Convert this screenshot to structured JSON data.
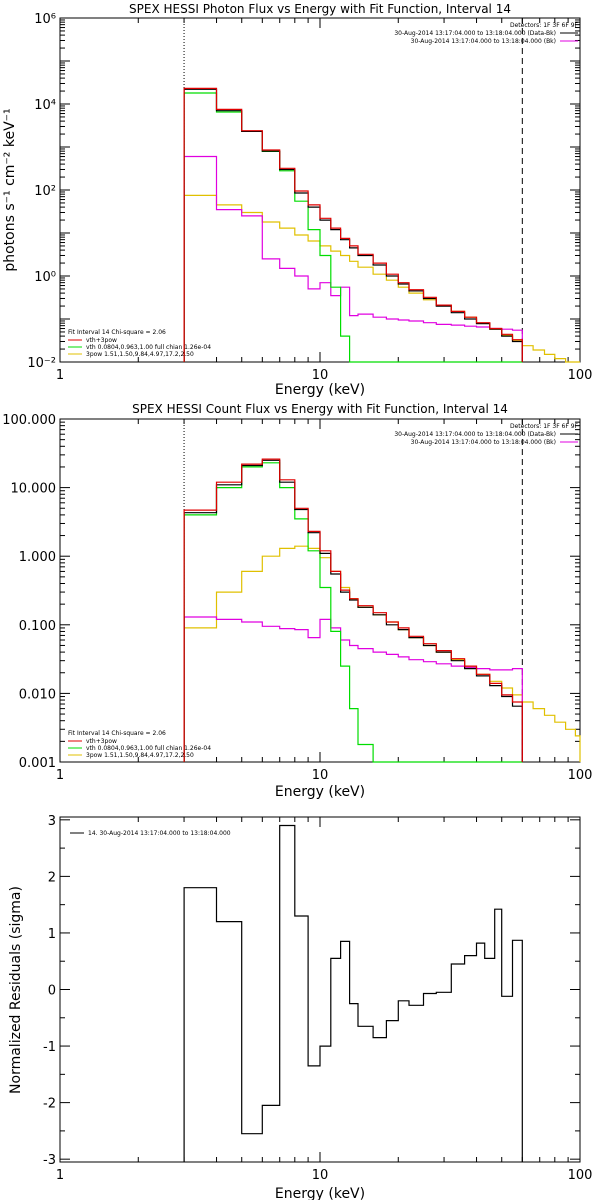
{
  "palette": {
    "total": "#000000",
    "vth_plus_3pow": "#e00000",
    "vth": "#00dd00",
    "3pow": "#e0c000",
    "bk": "#e000e0"
  },
  "chart_data": [
    {
      "type": "line",
      "step": true,
      "title": "SPEX HESSI Photon Flux vs Energy with Fit Function, Interval 14",
      "xlabel": "Energy (keV)",
      "ylabel": "photons s⁻¹ cm⁻² keV⁻¹",
      "xscale": "log",
      "yscale": "log",
      "xlim": [
        1,
        100
      ],
      "ylim": [
        0.01,
        1000000
      ],
      "xticks": [
        1,
        10,
        100
      ],
      "xtick_labels": [
        "1",
        "10",
        "100"
      ],
      "yticks": [
        0.01,
        1,
        100,
        10000,
        1000000
      ],
      "ytick_labels": [
        "10⁻²",
        "10⁰",
        "10²",
        "10⁴",
        "10⁶"
      ],
      "vlines": [
        {
          "x": 3.0,
          "style": "dotted"
        },
        {
          "x": 60.0,
          "style": "dashed"
        }
      ],
      "legend_right": {
        "header": "Detectors: 1F 3F 6F 9F",
        "entries": [
          "30-Aug-2014 13:17:04.000 to 13:18:04.000 (Data-Bk)",
          "30-Aug-2014 13:17:04.000 to 13:18:04.000 (Bk)"
        ]
      },
      "legend_left": [
        "Fit Interval 14   Chi-square = 2.06",
        "vth+3pow",
        "vth 0.0804,0.963,1.00   full chian 1.26e-04",
        "3pow 1.51,1.50,9.84,4.97,17.2,2.50"
      ],
      "edges": [
        3.0,
        4.0,
        5.0,
        6.0,
        7.0,
        8.0,
        9.0,
        10.0,
        11.0,
        12.0,
        13.0,
        14.0,
        16.0,
        18.0,
        20.0,
        22.0,
        25.0,
        28.0,
        32.0,
        36.0,
        40.0,
        45.0,
        50.0,
        55.0,
        60.0,
        66.0,
        73.0,
        80.0,
        88.0,
        96.0,
        100.0
      ],
      "series": [
        {
          "name": "Data-Bk",
          "key": "total",
          "n_bins": 24,
          "values": [
            22000,
            7000,
            2300,
            800,
            300,
            85,
            40,
            20,
            12,
            7,
            4.5,
            3.0,
            1.8,
            1.0,
            0.65,
            0.45,
            0.3,
            0.2,
            0.14,
            0.1,
            0.078,
            0.058,
            0.04,
            0.03
          ]
        },
        {
          "name": "vth+3pow",
          "key": "vth_plus_3pow",
          "n_bins": 24,
          "values": [
            23000,
            7500,
            2400,
            850,
            320,
            95,
            45,
            22,
            13,
            7.5,
            5.0,
            3.2,
            2.0,
            1.1,
            0.7,
            0.48,
            0.32,
            0.21,
            0.15,
            0.11,
            0.082,
            0.06,
            0.044,
            0.033
          ]
        },
        {
          "name": "vth",
          "key": "vth",
          "n_bins": 24,
          "values": [
            18000,
            6500,
            2300,
            790,
            280,
            55,
            12,
            3.0,
            0.55,
            0.04,
            0.004,
            0.001,
            0.0001,
            1e-05,
            1e-06,
            1e-07,
            1e-08,
            1e-09,
            1e-10,
            1e-11,
            1e-12,
            1e-13,
            1e-14,
            1e-15
          ]
        },
        {
          "name": "3pow",
          "key": "3pow",
          "n_bins": 30,
          "values": [
            75,
            45,
            30,
            18,
            13,
            9,
            6.5,
            5.0,
            3.8,
            3.0,
            2.2,
            1.6,
            1.1,
            0.8,
            0.55,
            0.4,
            0.28,
            0.21,
            0.15,
            0.11,
            0.08,
            0.058,
            0.042,
            0.032,
            0.024,
            0.019,
            0.015,
            0.012,
            0.01,
            0.0085
          ]
        },
        {
          "name": "Bk",
          "key": "bk",
          "n_bins": 24,
          "values": [
            600,
            35,
            25,
            2.5,
            1.5,
            1.0,
            0.5,
            0.7,
            0.35,
            0.55,
            0.12,
            0.13,
            0.11,
            0.1,
            0.095,
            0.09,
            0.082,
            0.075,
            0.072,
            0.068,
            0.065,
            0.06,
            0.058,
            0.055
          ]
        }
      ]
    },
    {
      "type": "line",
      "step": true,
      "title": "SPEX HESSI Count Flux vs Energy with Fit Function, Interval 14",
      "xlabel": "Energy (keV)",
      "ylabel": "",
      "xscale": "log",
      "yscale": "log",
      "xlim": [
        1,
        100
      ],
      "ylim": [
        0.001,
        100
      ],
      "xticks": [
        1,
        10,
        100
      ],
      "xtick_labels": [
        "1",
        "10",
        "100"
      ],
      "yticks": [
        0.001,
        0.01,
        0.1,
        1,
        10,
        100
      ],
      "ytick_labels": [
        "0.001",
        "0.010",
        "0.100",
        "1.000",
        "10.000",
        "100.000"
      ],
      "vlines": [
        {
          "x": 3.0,
          "style": "dotted"
        },
        {
          "x": 60.0,
          "style": "dashed"
        }
      ],
      "legend_right": {
        "header": "Detectors: 1F 3F 6F 9F",
        "entries": [
          "30-Aug-2014 13:17:04.000 to 13:18:04.000 (Data-Bk)",
          "30-Aug-2014 13:17:04.000 to 13:18:04.000 (Bk)"
        ]
      },
      "legend_left": [
        "Fit Interval 14   Chi-square = 2.06",
        "vth+3pow",
        "vth 0.0804,0.963,1.00   full chian 1.26e-04",
        "3pow 1.51,1.50,9.84,4.97,17.2,2.50"
      ],
      "edges": [
        3.0,
        4.0,
        5.0,
        6.0,
        7.0,
        8.0,
        9.0,
        10.0,
        11.0,
        12.0,
        13.0,
        14.0,
        16.0,
        18.0,
        20.0,
        22.0,
        25.0,
        28.0,
        32.0,
        36.0,
        40.0,
        45.0,
        50.0,
        55.0,
        60.0,
        66.0,
        73.0,
        80.0,
        88.0,
        96.0,
        100.0
      ],
      "series": [
        {
          "name": "Data-Bk",
          "key": "total",
          "n_bins": 24,
          "values": [
            4.3,
            11,
            21,
            25,
            12,
            4.8,
            2.2,
            1.1,
            0.55,
            0.3,
            0.23,
            0.18,
            0.14,
            0.1,
            0.085,
            0.065,
            0.05,
            0.04,
            0.03,
            0.023,
            0.018,
            0.013,
            0.009,
            0.0065
          ]
        },
        {
          "name": "vth+3pow",
          "key": "vth_plus_3pow",
          "n_bins": 24,
          "values": [
            4.7,
            12,
            22,
            26,
            13,
            5.0,
            2.3,
            1.2,
            0.6,
            0.32,
            0.24,
            0.19,
            0.15,
            0.11,
            0.09,
            0.068,
            0.053,
            0.042,
            0.032,
            0.025,
            0.019,
            0.014,
            0.0095,
            0.0075
          ]
        },
        {
          "name": "vth",
          "key": "vth",
          "n_bins": 24,
          "values": [
            4.0,
            10,
            20,
            23,
            10,
            3.5,
            1.2,
            0.35,
            0.08,
            0.025,
            0.006,
            0.0018,
            0.0005,
            0.0001,
            1e-05,
            1e-06,
            1e-07,
            1e-08,
            1e-09,
            1e-10,
            1e-11,
            1e-12,
            1e-13,
            1e-14
          ]
        },
        {
          "name": "3pow",
          "key": "3pow",
          "n_bins": 30,
          "values": [
            0.09,
            0.3,
            0.6,
            1.0,
            1.3,
            1.4,
            1.3,
            0.95,
            0.6,
            0.35,
            0.24,
            0.18,
            0.14,
            0.11,
            0.085,
            0.065,
            0.05,
            0.04,
            0.031,
            0.024,
            0.019,
            0.015,
            0.012,
            0.0095,
            0.0075,
            0.006,
            0.0048,
            0.0038,
            0.003,
            0.0024
          ]
        },
        {
          "name": "Bk",
          "key": "bk",
          "n_bins": 24,
          "values": [
            0.13,
            0.12,
            0.11,
            0.095,
            0.088,
            0.085,
            0.065,
            0.12,
            0.09,
            0.06,
            0.05,
            0.045,
            0.04,
            0.037,
            0.034,
            0.031,
            0.029,
            0.027,
            0.025,
            0.024,
            0.023,
            0.022,
            0.022,
            0.023
          ]
        }
      ]
    },
    {
      "type": "line",
      "step": true,
      "title": "",
      "xlabel": "Energy (keV)",
      "ylabel": "Normalized Residuals (sigma)",
      "xscale": "log",
      "yscale": "linear",
      "xlim": [
        1,
        100
      ],
      "ylim": [
        -3.05,
        3.05
      ],
      "xticks": [
        1,
        10,
        100
      ],
      "xtick_labels": [
        "1",
        "10",
        "100"
      ],
      "yticks": [
        -3,
        -2,
        -1,
        0,
        1,
        2,
        3
      ],
      "ytick_labels": [
        "-3",
        "-2",
        "-1",
        "0",
        "1",
        "2",
        "3"
      ],
      "legend_left": [
        "14. 30-Aug-2014 13:17:04.000 to 13:18:04.000"
      ],
      "edges": [
        3.0,
        4.0,
        5.0,
        6.0,
        7.0,
        8.0,
        9.0,
        10.0,
        11.0,
        12.0,
        13.0,
        14.0,
        16.0,
        18.0,
        20.0,
        22.0,
        25.0,
        28.0,
        32.0,
        36.0,
        40.0,
        43.0,
        47.0,
        50.0,
        55.0,
        60.0
      ],
      "series": [
        {
          "key": "total",
          "n_bins": 25,
          "drop_to_floor": true,
          "values": [
            1.8,
            1.2,
            -2.55,
            -2.05,
            2.9,
            1.3,
            -1.35,
            -1.0,
            0.55,
            0.85,
            -0.25,
            -0.65,
            -0.85,
            -0.55,
            -0.2,
            -0.28,
            -0.07,
            -0.05,
            0.45,
            0.6,
            0.82,
            0.55,
            1.42,
            -0.12,
            0.87
          ]
        }
      ]
    }
  ]
}
